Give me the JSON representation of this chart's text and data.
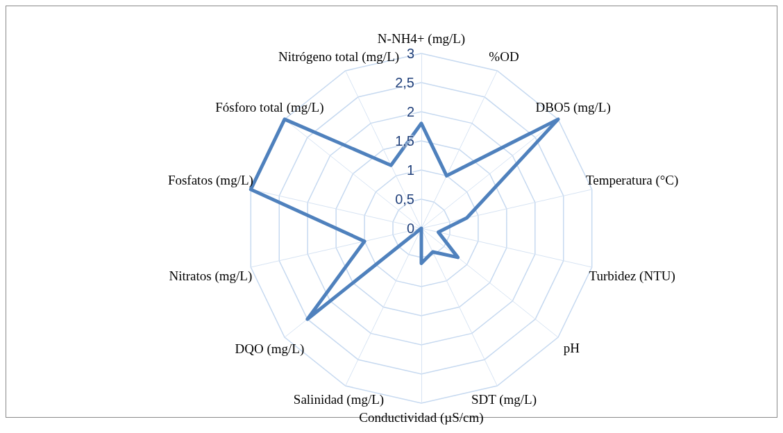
{
  "chart_data": {
    "type": "radar",
    "categories": [
      "N-NH4+ (mg/L)",
      "%OD",
      "DBO5 (mg/L)",
      "Temperatura (°C)",
      "Turbidez (NTU)",
      "pH",
      "SDT (mg/L)",
      "Conductividad (µS/cm)",
      "Salinidad (mg/L)",
      "DQO (mg/L)",
      "Nitratos (mg/L)",
      "Fosfatos (mg/L)",
      "Fósforo total (mg/L)",
      "Nitrógeno total (mg/L)"
    ],
    "series": [
      {
        "color": "#4f81bd",
        "values": [
          1.8,
          1.0,
          3.0,
          0.8,
          0.3,
          0.8,
          0.45,
          0.6,
          0,
          2.5,
          1.0,
          3.0,
          3.0,
          1.2
        ]
      }
    ],
    "ylim": [
      0,
      3
    ],
    "yticks": [
      0,
      {
        "value": 0.5,
        "label": "0,5"
      },
      1,
      {
        "value": 1.5,
        "label": "1,5"
      },
      2,
      {
        "value": 2.5,
        "label": "2,5"
      },
      3
    ],
    "marker": "none"
  }
}
